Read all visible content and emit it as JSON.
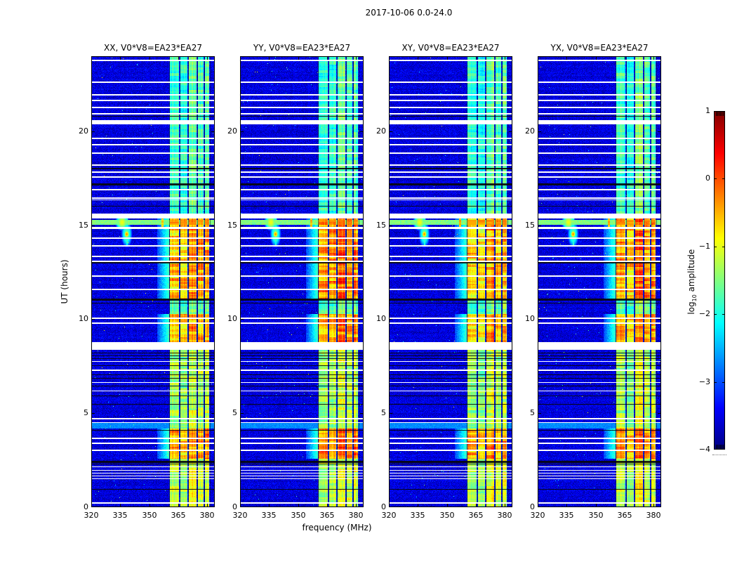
{
  "figure": {
    "title": "2017-10-06 0.0-24.0",
    "xlabel": "frequency (MHz)",
    "ylabel": "UT (hours)",
    "colorbar_label": {
      "prefix": "log",
      "sub": "10",
      "suffix": " amplitude"
    }
  },
  "chart_data": {
    "type": "heatmap",
    "title": "2017-10-06 0.0-24.0",
    "xlabel": "frequency (MHz)",
    "ylabel": "UT (hours)",
    "x_range": [
      320,
      384
    ],
    "y_range": [
      0,
      24
    ],
    "x_ticks": [
      320,
      335,
      350,
      365,
      380
    ],
    "y_ticks": [
      0,
      5,
      10,
      15,
      20
    ],
    "panels": [
      {
        "label": "XX, V0*V8=EA23*EA27",
        "boost": 0
      },
      {
        "label": "YY, V0*V8=EA23*EA27",
        "boost": 0.18
      },
      {
        "label": "XY, V0*V8=EA23*EA27",
        "boost": -0.05
      },
      {
        "label": "YX, V0*V8=EA23*EA27",
        "boost": 0.08
      }
    ],
    "colorbar": {
      "label": "log10 amplitude",
      "range": [
        -4,
        1
      ],
      "ticks": [
        "1",
        "0",
        "−1",
        "−2",
        "−3",
        "−4"
      ],
      "tick_values": [
        1,
        0,
        -1,
        -2,
        -3,
        -4
      ],
      "colormap": "jet"
    },
    "features": {
      "background_level": -3.55,
      "noise_sigma": 0.28,
      "band": {
        "f0": 360.3,
        "f1": 381.7,
        "floor": -3.25
      },
      "stripes": [
        {
          "f0": 360.9,
          "f1": 365.4,
          "adj": 0.0
        },
        {
          "f0": 366.1,
          "f1": 369.7,
          "adj": -0.1
        },
        {
          "f0": 370.5,
          "f1": 374.5,
          "adj": 0.25
        },
        {
          "f0": 375.1,
          "f1": 378.2,
          "adj": 0.05
        },
        {
          "f0": 378.8,
          "f1": 381.2,
          "adj": 0.15
        }
      ],
      "stripe_periods": [
        {
          "t0": 0,
          "t1": 2.6,
          "level": -1.25,
          "var": 0.5
        },
        {
          "t0": 2.6,
          "t1": 4.2,
          "level": -0.5,
          "var": 0.7
        },
        {
          "t0": 4.2,
          "t1": 8.6,
          "level": -1.35,
          "var": 0.5
        },
        {
          "t0": 8.6,
          "t1": 10.3,
          "level": -0.65,
          "var": 0.7
        },
        {
          "t0": 10.3,
          "t1": 11.1,
          "level": -1.7,
          "var": 0.4
        },
        {
          "t0": 11.1,
          "t1": 14.85,
          "level": -0.6,
          "var": 0.75
        },
        {
          "t0": 14.85,
          "t1": 15.45,
          "level": -0.55,
          "var": 0.5
        },
        {
          "t0": 15.45,
          "t1": 24,
          "level": -1.85,
          "var": 0.45
        }
      ],
      "broadband_line": {
        "t0": 15.05,
        "t1": 15.32,
        "level": -1.5,
        "band_level": -0.35,
        "bump_freq": 336.0,
        "bump_level": -0.95
      },
      "cyan_band": {
        "t0": 4.2,
        "t1": 4.55,
        "level": -2.7
      },
      "flare": {
        "freq": 338.4,
        "time": 14.55,
        "peak": -0.35,
        "halo": -1.6
      },
      "narrow_rfi": {
        "freq": 356.9,
        "t0": 14.95,
        "t1": 15.45,
        "level": -0.6
      },
      "grid_lines_freq": [
        360.35,
        365.7,
        370.05,
        374.75,
        378.45,
        381.5
      ],
      "white_gaps": [
        [
          23.82,
          0.08
        ],
        [
          22.65,
          0.08
        ],
        [
          22.0,
          0.07
        ],
        [
          21.7,
          0.06
        ],
        [
          21.3,
          0.06
        ],
        [
          20.97,
          0.06
        ],
        [
          20.58,
          0.24
        ],
        [
          19.65,
          0.06
        ],
        [
          19.33,
          0.06
        ],
        [
          18.88,
          0.06
        ],
        [
          18.24,
          0.06
        ],
        [
          17.88,
          0.09
        ],
        [
          17.62,
          0.06
        ],
        [
          16.94,
          0.06
        ],
        [
          16.48,
          0.06
        ],
        [
          16.36,
          0.05
        ],
        [
          15.62,
          0.28
        ],
        [
          14.9,
          0.1
        ],
        [
          14.34,
          0.06
        ],
        [
          13.94,
          0.06
        ],
        [
          13.4,
          0.07
        ],
        [
          13.14,
          0.06
        ],
        [
          12.33,
          0.06
        ],
        [
          11.64,
          0.06
        ],
        [
          10.1,
          0.08
        ],
        [
          9.85,
          0.06
        ],
        [
          8.78,
          0.42
        ],
        [
          7.76,
          0.05
        ],
        [
          7.33,
          0.06
        ],
        [
          6.66,
          0.05
        ],
        [
          6.2,
          0.05
        ],
        [
          4.76,
          0.06
        ],
        [
          4.53,
          0.05
        ],
        [
          3.7,
          0.06
        ],
        [
          3.44,
          0.06
        ],
        [
          3.08,
          0.06
        ],
        [
          2.17,
          0.05
        ],
        [
          2.0,
          0.05
        ],
        [
          1.83,
          0.05
        ],
        [
          1.69,
          0.05
        ],
        [
          1.53,
          0.05
        ],
        [
          0.26,
          0.07
        ]
      ],
      "black_lines": [
        [
          20.82,
          0.04
        ],
        [
          18.06,
          0.09
        ],
        [
          17.24,
          0.12
        ],
        [
          16.03,
          0.04
        ],
        [
          13.04,
          0.09
        ],
        [
          11.1,
          0.13
        ],
        [
          10.88,
          0.05
        ],
        [
          8.24,
          0.05
        ],
        [
          8.08,
          0.04
        ],
        [
          7.92,
          0.04
        ],
        [
          7.54,
          0.05
        ],
        [
          7.08,
          0.04
        ],
        [
          6.88,
          0.04
        ],
        [
          6.48,
          0.04
        ],
        [
          5.94,
          0.05
        ],
        [
          5.48,
          0.04
        ],
        [
          4.12,
          0.05
        ],
        [
          2.47,
          0.1
        ],
        [
          2.3,
          0.05
        ],
        [
          0.98,
          0.05
        ]
      ]
    }
  }
}
